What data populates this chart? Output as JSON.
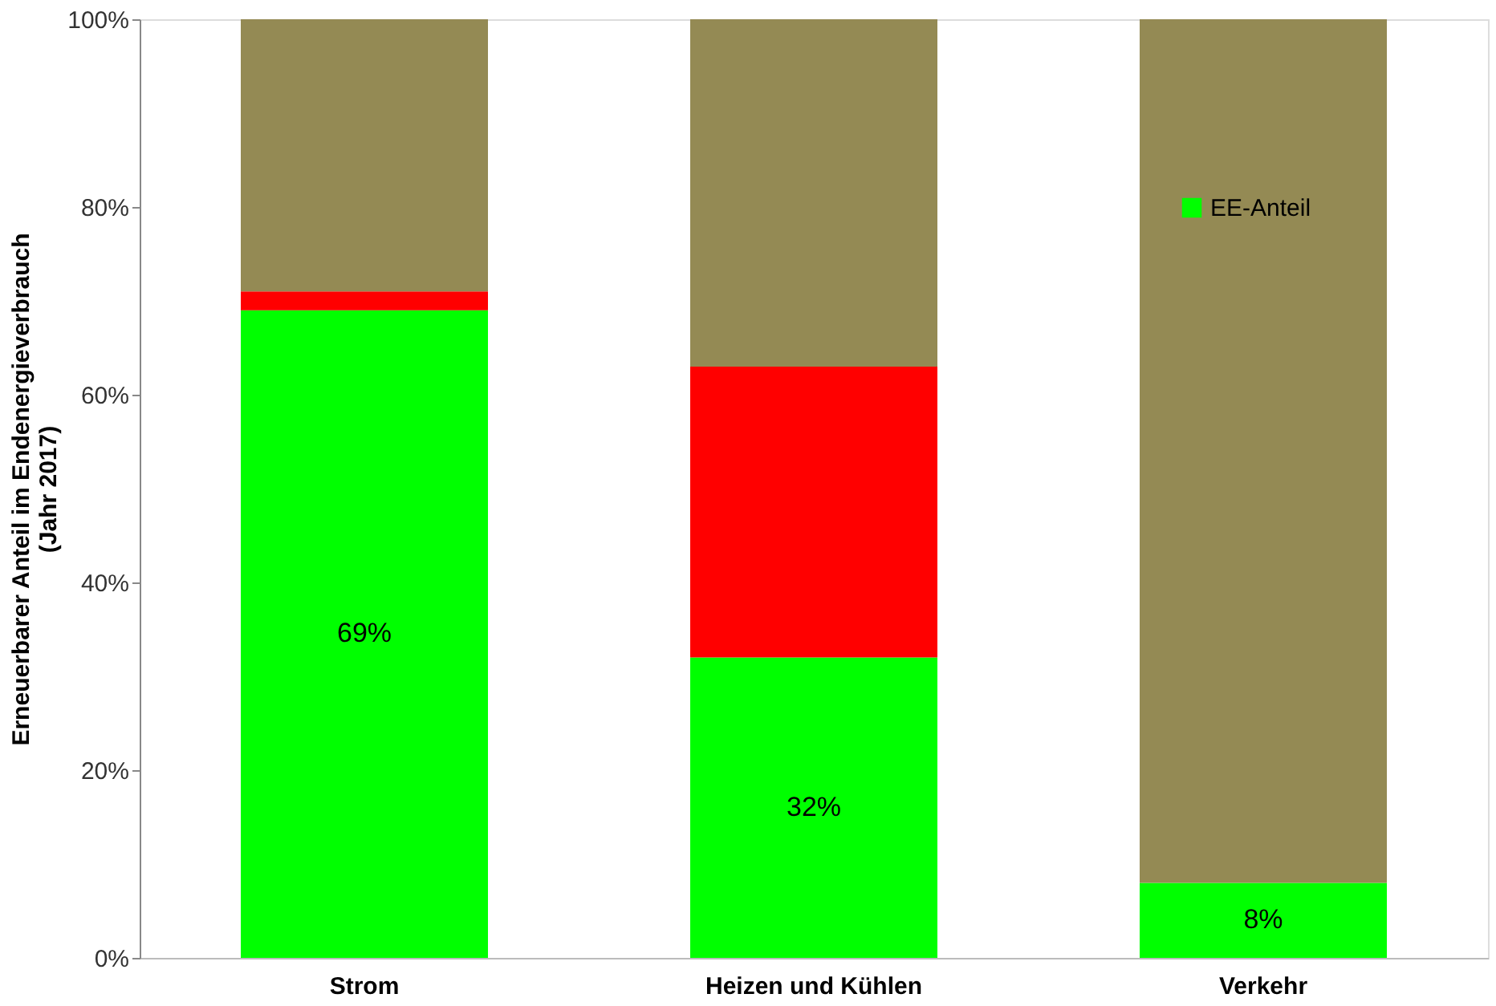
{
  "chart_data": {
    "type": "bar",
    "stacked": true,
    "categories": [
      "Strom",
      "Heizen und Kühlen",
      "Verkehr"
    ],
    "ylabel": "Erneuerbarer Anteil im Endenergieverbrauch\n(Jahr 2017)",
    "series": [
      {
        "name": "EE-Anteil",
        "color": "#00ff00",
        "values": [
          69,
          32,
          8
        ],
        "value_labels": [
          "69%",
          "32%",
          "8%"
        ]
      },
      {
        "color": "#ff0000",
        "values": [
          2,
          31,
          0
        ]
      },
      {
        "color": "#948a54",
        "values": [
          29,
          37,
          92
        ]
      }
    ],
    "ylim": [
      0,
      100
    ],
    "yticks": [
      {
        "value": 0,
        "label": "0%"
      },
      {
        "value": 20,
        "label": "20%"
      },
      {
        "value": 40,
        "label": "40%"
      },
      {
        "value": 60,
        "label": "60%"
      },
      {
        "value": 80,
        "label": "80%"
      },
      {
        "value": 100,
        "label": "100%"
      }
    ],
    "grid": false,
    "legend": "top right"
  }
}
